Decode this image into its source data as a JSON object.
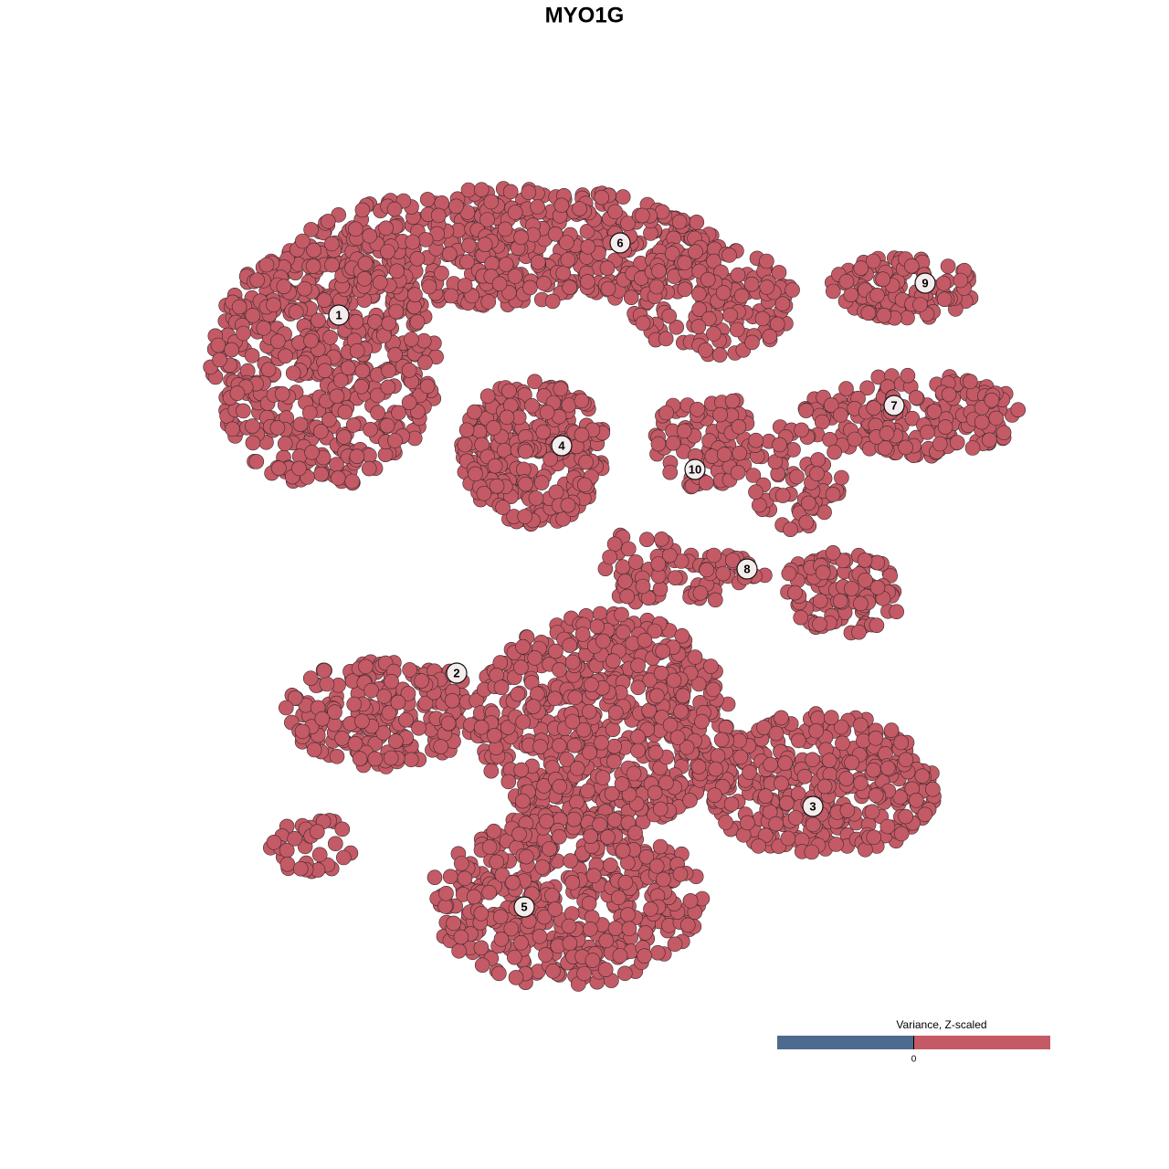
{
  "chart_data": {
    "type": "scatter",
    "title": "MYO1G",
    "color": "#c45a65",
    "clusters": [
      "1",
      "2",
      "3",
      "4",
      "5",
      "6",
      "7",
      "8",
      "9",
      "10"
    ],
    "legend_title": "Variance, Z-scaled",
    "colorbar_colors": [
      "#4f6a8f",
      "#c45a65"
    ],
    "colorbar_ticks": [
      0
    ]
  }
}
